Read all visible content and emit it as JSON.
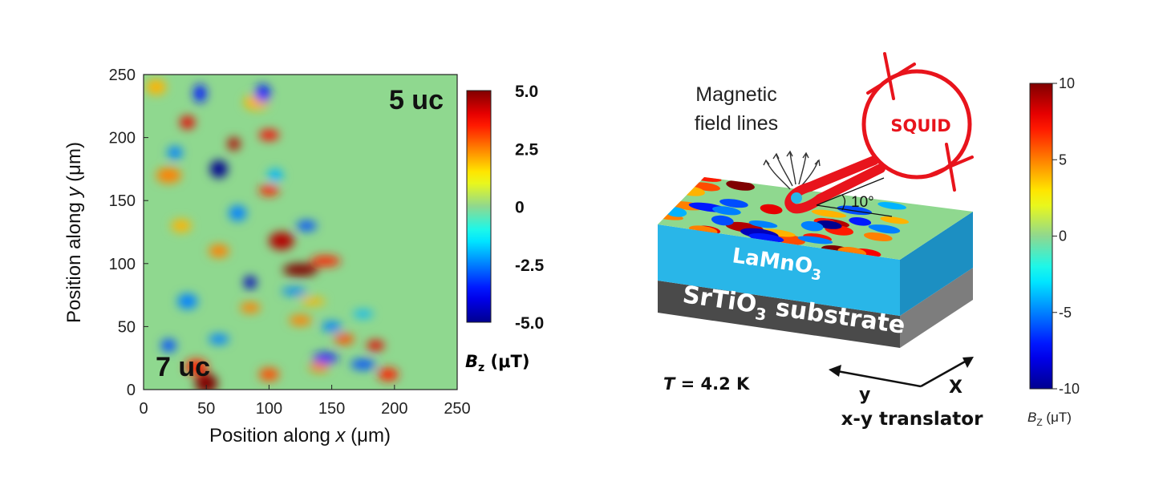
{
  "chart_data": [
    {
      "type": "heatmap",
      "title": "",
      "xlabel_prefix": "Position along ",
      "xlabel_var": "x",
      "xlabel_suffix": " (μm)",
      "ylabel_prefix": "Position along ",
      "ylabel_var": "y",
      "ylabel_suffix": " (μm)",
      "xlim": [
        0,
        250
      ],
      "ylim": [
        0,
        250
      ],
      "x_ticks": [
        0,
        50,
        100,
        150,
        200,
        250
      ],
      "y_ticks": [
        0,
        50,
        100,
        150,
        200,
        250
      ],
      "annotations": {
        "top_right": "5 uc",
        "bottom_left": "7 uc"
      },
      "colorbar": {
        "range": [
          -5.0,
          5.0
        ],
        "ticks": [
          "5.0",
          "2.5",
          "0",
          "-2.5",
          "-5.0"
        ],
        "tick_values": [
          5.0,
          2.5,
          0,
          -2.5,
          -5.0
        ],
        "label_main": "B",
        "label_sub": "z",
        "label_unit": " (μT)",
        "colormap": "jet"
      },
      "blobs": [
        {
          "x": 50,
          "y": 5,
          "v": 5.0,
          "sx": 9,
          "sy": 8
        },
        {
          "x": 42,
          "y": 18,
          "v": 3.5,
          "sx": 9,
          "sy": 6
        },
        {
          "x": 110,
          "y": 118,
          "v": 4.5,
          "sx": 10,
          "sy": 7
        },
        {
          "x": 125,
          "y": 95,
          "v": 5.0,
          "sx": 14,
          "sy": 5
        },
        {
          "x": 145,
          "y": 102,
          "v": 3.5,
          "sx": 12,
          "sy": 4
        },
        {
          "x": 72,
          "y": 195,
          "v": 4.5,
          "sx": 5,
          "sy": 5
        },
        {
          "x": 35,
          "y": 212,
          "v": 4.0,
          "sx": 6,
          "sy": 5
        },
        {
          "x": 100,
          "y": 202,
          "v": 3.8,
          "sx": 8,
          "sy": 4
        },
        {
          "x": 100,
          "y": 158,
          "v": 3.5,
          "sx": 8,
          "sy": 4
        },
        {
          "x": 185,
          "y": 35,
          "v": 4.0,
          "sx": 7,
          "sy": 4
        },
        {
          "x": 195,
          "y": 12,
          "v": 3.5,
          "sx": 8,
          "sy": 5
        },
        {
          "x": 160,
          "y": 40,
          "v": 3.0,
          "sx": 8,
          "sy": 4
        },
        {
          "x": 20,
          "y": 170,
          "v": 2.5,
          "sx": 10,
          "sy": 6
        },
        {
          "x": 125,
          "y": 55,
          "v": 2.5,
          "sx": 9,
          "sy": 4
        },
        {
          "x": 100,
          "y": 12,
          "v": 3.0,
          "sx": 8,
          "sy": 5
        },
        {
          "x": 140,
          "y": 18,
          "v": 2.5,
          "sx": 8,
          "sy": 4
        },
        {
          "x": 90,
          "y": 228,
          "v": 2.0,
          "sx": 10,
          "sy": 6
        },
        {
          "x": 10,
          "y": 240,
          "v": 2.0,
          "sx": 8,
          "sy": 6
        },
        {
          "x": 85,
          "y": 65,
          "v": 2.5,
          "sx": 8,
          "sy": 4
        },
        {
          "x": 60,
          "y": 110,
          "v": 2.5,
          "sx": 8,
          "sy": 5
        },
        {
          "x": 135,
          "y": 70,
          "v": 2.0,
          "sx": 10,
          "sy": 3
        },
        {
          "x": 30,
          "y": 130,
          "v": 2.0,
          "sx": 8,
          "sy": 5
        },
        {
          "x": 60,
          "y": 175,
          "v": -5.0,
          "sx": 7,
          "sy": 7
        },
        {
          "x": 85,
          "y": 85,
          "v": -4.5,
          "sx": 5,
          "sy": 5
        },
        {
          "x": 45,
          "y": 235,
          "v": -3.5,
          "sx": 5,
          "sy": 7
        },
        {
          "x": 95,
          "y": 235,
          "v": -3.5,
          "sx": 6,
          "sy": 7
        },
        {
          "x": 20,
          "y": 35,
          "v": -3.0,
          "sx": 6,
          "sy": 5
        },
        {
          "x": 130,
          "y": 130,
          "v": -3.0,
          "sx": 8,
          "sy": 4
        },
        {
          "x": 145,
          "y": 25,
          "v": -3.5,
          "sx": 10,
          "sy": 4
        },
        {
          "x": 175,
          "y": 20,
          "v": -3.0,
          "sx": 10,
          "sy": 4
        },
        {
          "x": 150,
          "y": 50,
          "v": -2.5,
          "sx": 8,
          "sy": 4
        },
        {
          "x": 35,
          "y": 70,
          "v": -2.5,
          "sx": 8,
          "sy": 6
        },
        {
          "x": 120,
          "y": 78,
          "v": -2.5,
          "sx": 10,
          "sy": 3
        },
        {
          "x": 25,
          "y": 188,
          "v": -2.5,
          "sx": 6,
          "sy": 5
        },
        {
          "x": 75,
          "y": 140,
          "v": -2.5,
          "sx": 7,
          "sy": 6
        },
        {
          "x": 105,
          "y": 170,
          "v": -2.0,
          "sx": 6,
          "sy": 5
        },
        {
          "x": 60,
          "y": 40,
          "v": -2.5,
          "sx": 8,
          "sy": 4
        },
        {
          "x": 175,
          "y": 60,
          "v": -2.0,
          "sx": 8,
          "sy": 3
        }
      ]
    },
    {
      "type": "heatmap",
      "colorbar": {
        "range": [
          -10,
          10
        ],
        "ticks": [
          "10",
          "5",
          "0",
          "-5",
          "-10"
        ],
        "tick_values": [
          10,
          5,
          0,
          -5,
          -10
        ],
        "label_main": "B",
        "label_sub": "Z",
        "label_unit": " (μT)",
        "colormap": "jet"
      }
    }
  ],
  "diagram": {
    "field_lines_label_line1": "Magnetic",
    "field_lines_label_line2": "field lines",
    "squid_label": "SQUID",
    "angle_label": "10°",
    "layer1_main": "LaMnO",
    "layer1_sub": "3",
    "layer2_main": "SrTiO",
    "layer2_sub": "3",
    "layer2_suffix": " substrate",
    "temperature_var": "T",
    "temperature_value": " = 4.2 K",
    "axis_y": "y",
    "axis_x": "X",
    "translator_label": "x-y translator",
    "colors": {
      "squid": "#e8141c",
      "lamno3": "#29b6e8",
      "lamno3_shade": "#1c8fc2",
      "substrate_front": "#4a4a4a",
      "substrate_side": "#7d7d7d"
    }
  }
}
